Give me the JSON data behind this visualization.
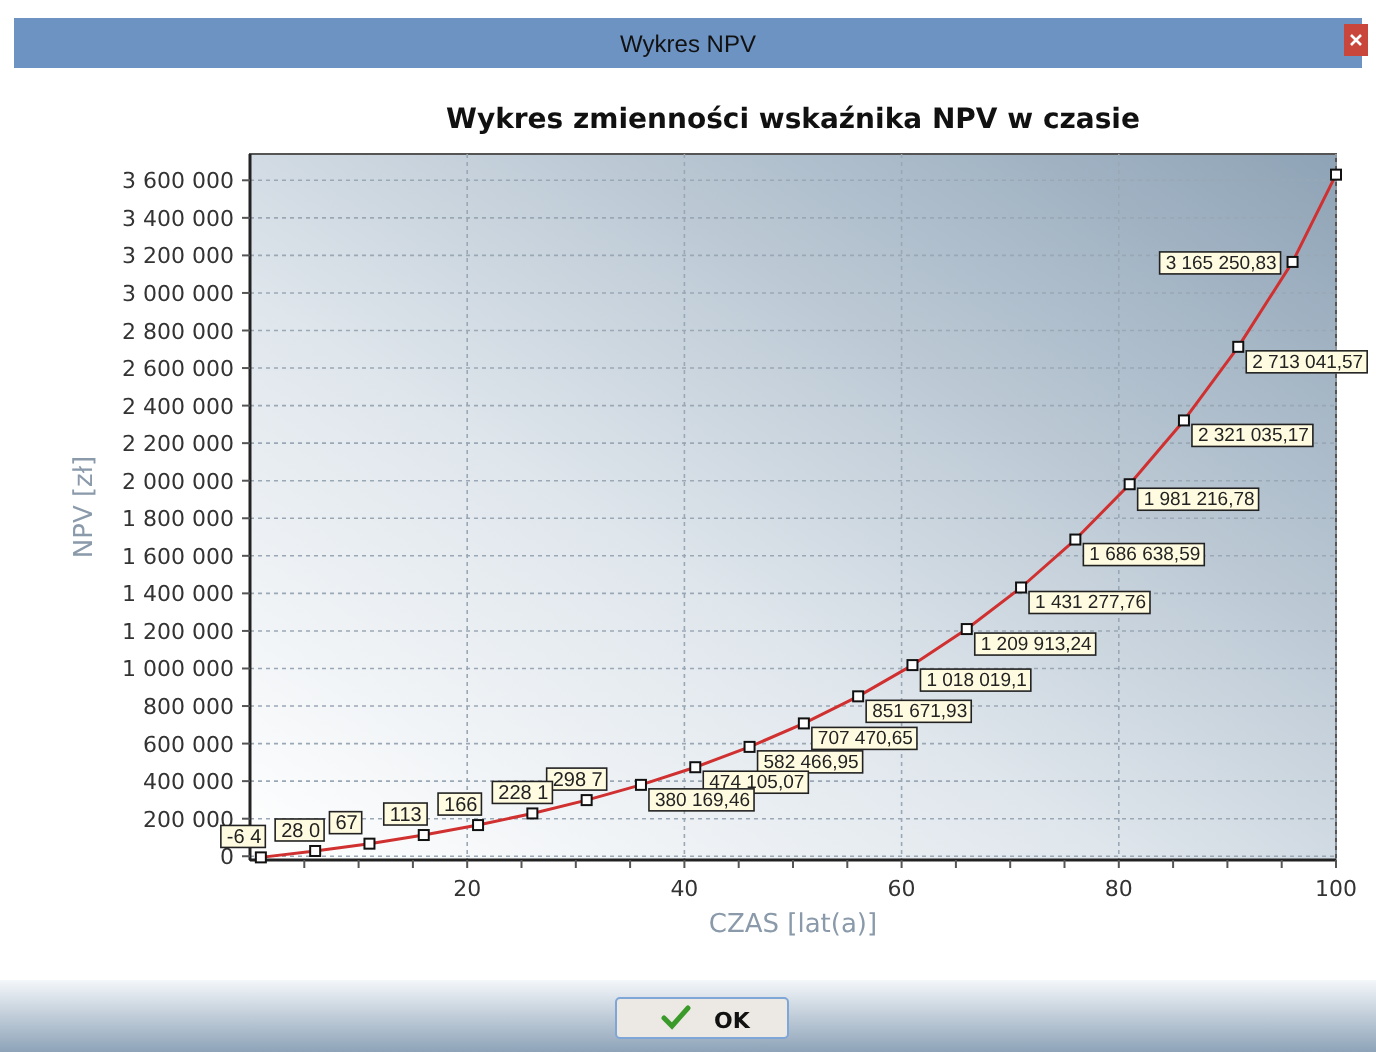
{
  "chart_data": {
    "type": "line",
    "title": "Wykres zmienności wskaźnika NPV w czasie",
    "xlabel": "CZAS [lat(a)]",
    "ylabel": "NPV [zł]",
    "annotations": [
      "Wykres NPV",
      {
        "text": "-6 4",
        "x": 1,
        "y": -6400
      },
      {
        "text": "28 0",
        "x": 6,
        "y": 28000
      },
      {
        "text": "67",
        "x": 11,
        "y": 67000
      },
      {
        "text": "113",
        "x": 16,
        "y": 113000
      },
      {
        "text": "166",
        "x": 21,
        "y": 166000
      },
      {
        "text": "228 1",
        "x": 26,
        "y": 228000
      },
      {
        "text": "298 7",
        "x": 31,
        "y": 299000
      },
      "OK"
    ],
    "x": [
      1,
      6,
      11,
      16,
      21,
      26,
      31,
      36,
      41,
      46,
      51,
      56,
      61,
      66,
      71,
      76,
      81,
      86,
      91,
      96,
      100
    ],
    "series": [
      {
        "color": "#d03030",
        "values": [
          -6000,
          28000,
          67000,
          113000,
          166000,
          228000,
          299000,
          380169.46,
          474105.07,
          582466.95,
          707470.65,
          851671.93,
          1018019.1,
          1209913.24,
          1431277.76,
          1686638.59,
          1981216.78,
          2321035.17,
          2713041.57,
          3165250.83,
          3630000
        ],
        "value_labels": [
          null,
          null,
          null,
          null,
          null,
          null,
          null,
          "380 169,46",
          "474 105,07",
          "582 466,95",
          "707 470,65",
          "851 671,93",
          "1 018 019,1",
          "1 209 913,24",
          "1 431 277,76",
          "1 686 638,59",
          "1 981 216,78",
          "2 321 035,17",
          "2 713 041,57",
          "3 165 250,83",
          null
        ]
      }
    ],
    "xlim": [
      0,
      100
    ],
    "xticks": [
      {
        "value": 5,
        "label": null
      },
      {
        "value": 10,
        "label": null
      },
      {
        "value": 15,
        "label": null
      },
      20,
      {
        "value": 25,
        "label": null
      },
      {
        "value": 30,
        "label": null
      },
      {
        "value": 35,
        "label": null
      },
      40,
      {
        "value": 45,
        "label": null
      },
      {
        "value": 50,
        "label": null
      },
      {
        "value": 55,
        "label": null
      },
      60,
      {
        "value": 65,
        "label": null
      },
      {
        "value": 70,
        "label": null
      },
      {
        "value": 75,
        "label": null
      },
      80,
      {
        "value": 85,
        "label": null
      },
      {
        "value": 90,
        "label": null
      },
      {
        "value": 95,
        "label": null
      },
      100
    ],
    "ylim": [
      -20000,
      3740000
    ],
    "yticks": [
      {
        "value": 0,
        "label": "0"
      },
      {
        "value": 200000,
        "label": "200 000"
      },
      {
        "value": 400000,
        "label": "400 000"
      },
      {
        "value": 600000,
        "label": "600 000"
      },
      {
        "value": 800000,
        "label": "800 000"
      },
      {
        "value": 1000000,
        "label": "1 000 000"
      },
      {
        "value": 1200000,
        "label": "1 200 000"
      },
      {
        "value": 1400000,
        "label": "1 400 000"
      },
      {
        "value": 1600000,
        "label": "1 600 000"
      },
      {
        "value": 1800000,
        "label": "1 800 000"
      },
      {
        "value": 2000000,
        "label": "2 000 000"
      },
      {
        "value": 2200000,
        "label": "2 200 000"
      },
      {
        "value": 2400000,
        "label": "2 400 000"
      },
      {
        "value": 2600000,
        "label": "2 600 000"
      },
      {
        "value": 2800000,
        "label": "2 800 000"
      },
      {
        "value": 3000000,
        "label": "3 000 000"
      },
      {
        "value": 3200000,
        "label": "3 200 000"
      },
      {
        "value": 3400000,
        "label": "3 400 000"
      },
      {
        "value": 3600000,
        "label": "3 600 000"
      }
    ],
    "grid": true,
    "marker": "square",
    "line_style": "solid"
  }
}
